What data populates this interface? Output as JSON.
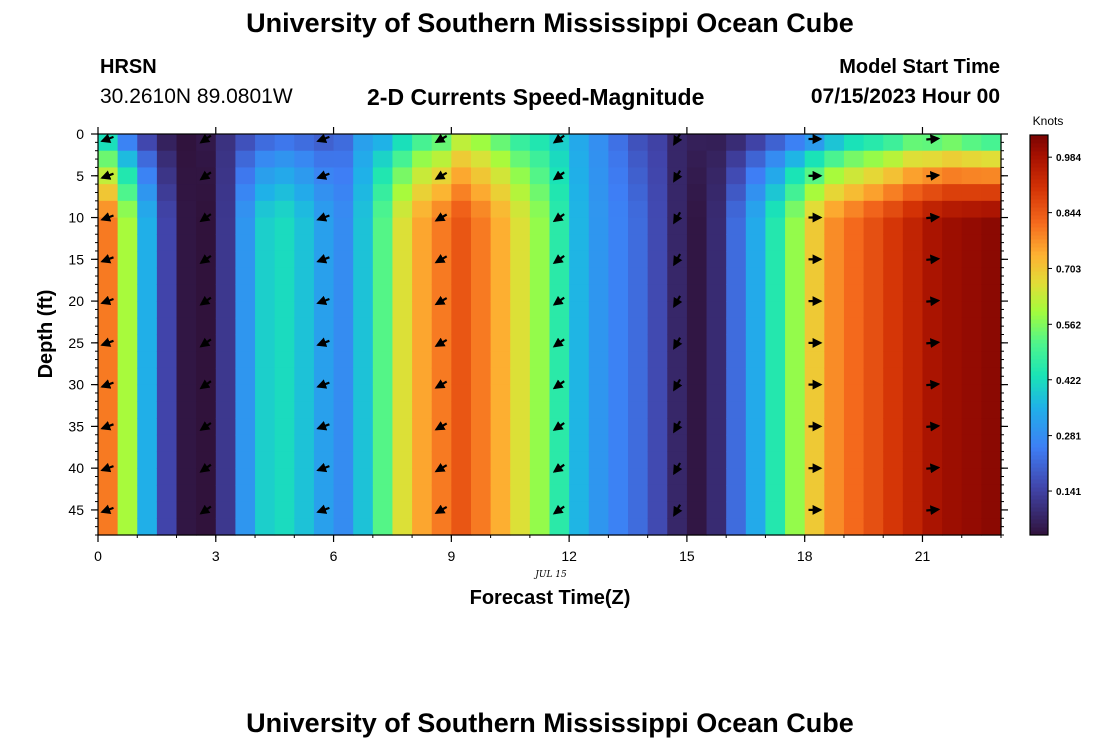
{
  "header": {
    "title_top": "University of Southern Mississippi Ocean Cube",
    "title_bottom": "University of Southern Mississippi Ocean Cube",
    "station": "HRSN",
    "coords": "30.2610N  89.0801W",
    "subtitle": "2-D Currents Speed-Magnitude",
    "start_label": "Model Start Time",
    "start_value": "07/15/2023 Hour 00"
  },
  "chart_data": {
    "type": "heatmap",
    "xlabel": "Forecast Time(Z)",
    "ylabel": "Depth (ft)",
    "date_label": "JUL 15",
    "colorbar_label": "Knots",
    "x_ticks": [
      0,
      3,
      6,
      9,
      12,
      15,
      18,
      21
    ],
    "y_ticks": [
      0,
      5,
      10,
      15,
      20,
      25,
      30,
      35,
      40,
      45
    ],
    "xlim": [
      0,
      23
    ],
    "ylim": [
      48,
      0
    ],
    "colorbar_ticks": [
      0.141,
      0.281,
      0.422,
      0.562,
      0.703,
      0.844,
      0.984
    ],
    "colorbar_range": [
      0.03,
      1.04
    ],
    "hours": [
      0,
      0.5,
      1,
      1.5,
      2,
      2.5,
      3,
      3.5,
      4,
      4.5,
      5,
      5.5,
      6,
      6.5,
      7,
      7.5,
      8,
      8.5,
      9,
      9.5,
      10,
      10.5,
      11,
      11.5,
      12,
      12.5,
      13,
      13.5,
      14,
      14.5,
      15,
      15.5,
      16,
      16.5,
      17,
      17.5,
      18,
      18.5,
      19,
      19.5,
      20,
      20.5,
      21,
      21.5,
      22,
      22.5
    ],
    "speed_surface": [
      0.3,
      0.15,
      0.09,
      0.04,
      0.03,
      0.05,
      0.1,
      0.13,
      0.16,
      0.18,
      0.17,
      0.16,
      0.2,
      0.3,
      0.3,
      0.35,
      0.42,
      0.45,
      0.55,
      0.52,
      0.47,
      0.42,
      0.4,
      0.38,
      0.33,
      0.28,
      0.22,
      0.16,
      0.14,
      0.08,
      0.07,
      0.05,
      0.05,
      0.08,
      0.12,
      0.15,
      0.18,
      0.25,
      0.3,
      0.32,
      0.35,
      0.4,
      0.38,
      0.4,
      0.36,
      0.33
    ],
    "speed_bottom": [
      0.8,
      0.6,
      0.35,
      0.15,
      0.04,
      0.03,
      0.12,
      0.3,
      0.4,
      0.42,
      0.38,
      0.32,
      0.28,
      0.38,
      0.52,
      0.66,
      0.75,
      0.8,
      0.85,
      0.8,
      0.74,
      0.66,
      0.58,
      0.46,
      0.36,
      0.3,
      0.26,
      0.22,
      0.16,
      0.08,
      0.04,
      0.09,
      0.22,
      0.34,
      0.45,
      0.58,
      0.7,
      0.78,
      0.82,
      0.86,
      0.9,
      0.94,
      0.98,
      1.0,
      1.01,
      1.02
    ],
    "vector_hours": [
      0.25,
      2.75,
      5.75,
      8.75,
      11.75,
      14.75,
      18.25,
      21.25
    ],
    "vector_depths": [
      0,
      5,
      10,
      15,
      20,
      25,
      30,
      35,
      40,
      45
    ],
    "vector_direction_deg": [
      200,
      215,
      200,
      210,
      215,
      240,
      0,
      5
    ]
  }
}
